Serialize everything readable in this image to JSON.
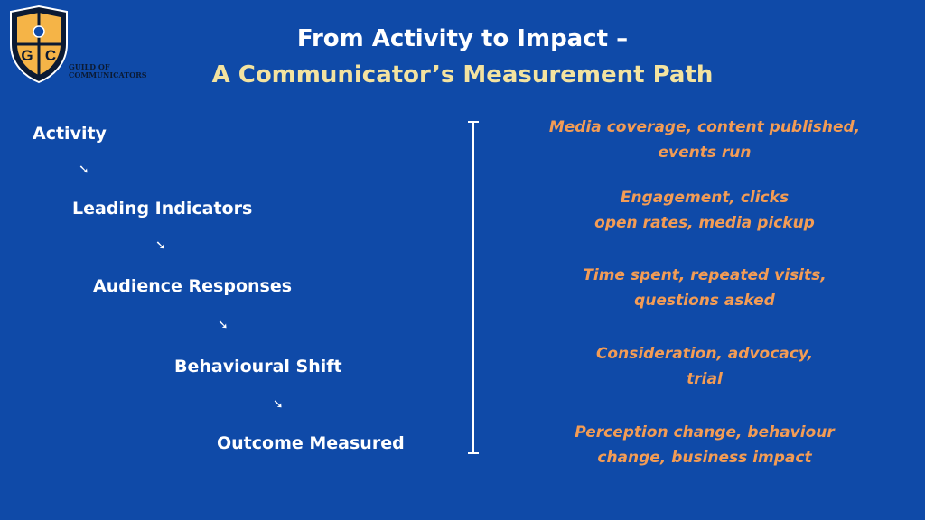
{
  "logo": {
    "letters": [
      "G",
      "C"
    ],
    "caption_line1": "GUILD OF",
    "caption_line2": "COMMUNICATORS"
  },
  "title": {
    "line1": "From Activity to Impact –",
    "line2": "A Communicator’s Measurement Path"
  },
  "path": {
    "arrow": "➘",
    "steps": [
      "Activity",
      "Leading Indicators",
      "Audience Responses",
      "Behavioural Shift",
      "Outcome Measured"
    ]
  },
  "metrics": [
    {
      "line1": "Media coverage, content published,",
      "line2": "events run"
    },
    {
      "line1": "Engagement, clicks",
      "line2": "open rates, media pickup"
    },
    {
      "line1": "Time spent, repeated visits,",
      "line2": "questions asked"
    },
    {
      "line1": "Consideration, advocacy,",
      "line2": "trial"
    },
    {
      "line1": "Perception change, behaviour",
      "line2": "change, business impact"
    }
  ],
  "colors": {
    "background": "#0f4aa8",
    "title_primary": "#ffffff",
    "title_accent": "#f3e3a0",
    "metric_text": "#f39c55",
    "shield_fill": "#f5b447",
    "shield_border": "#0b1a33"
  }
}
